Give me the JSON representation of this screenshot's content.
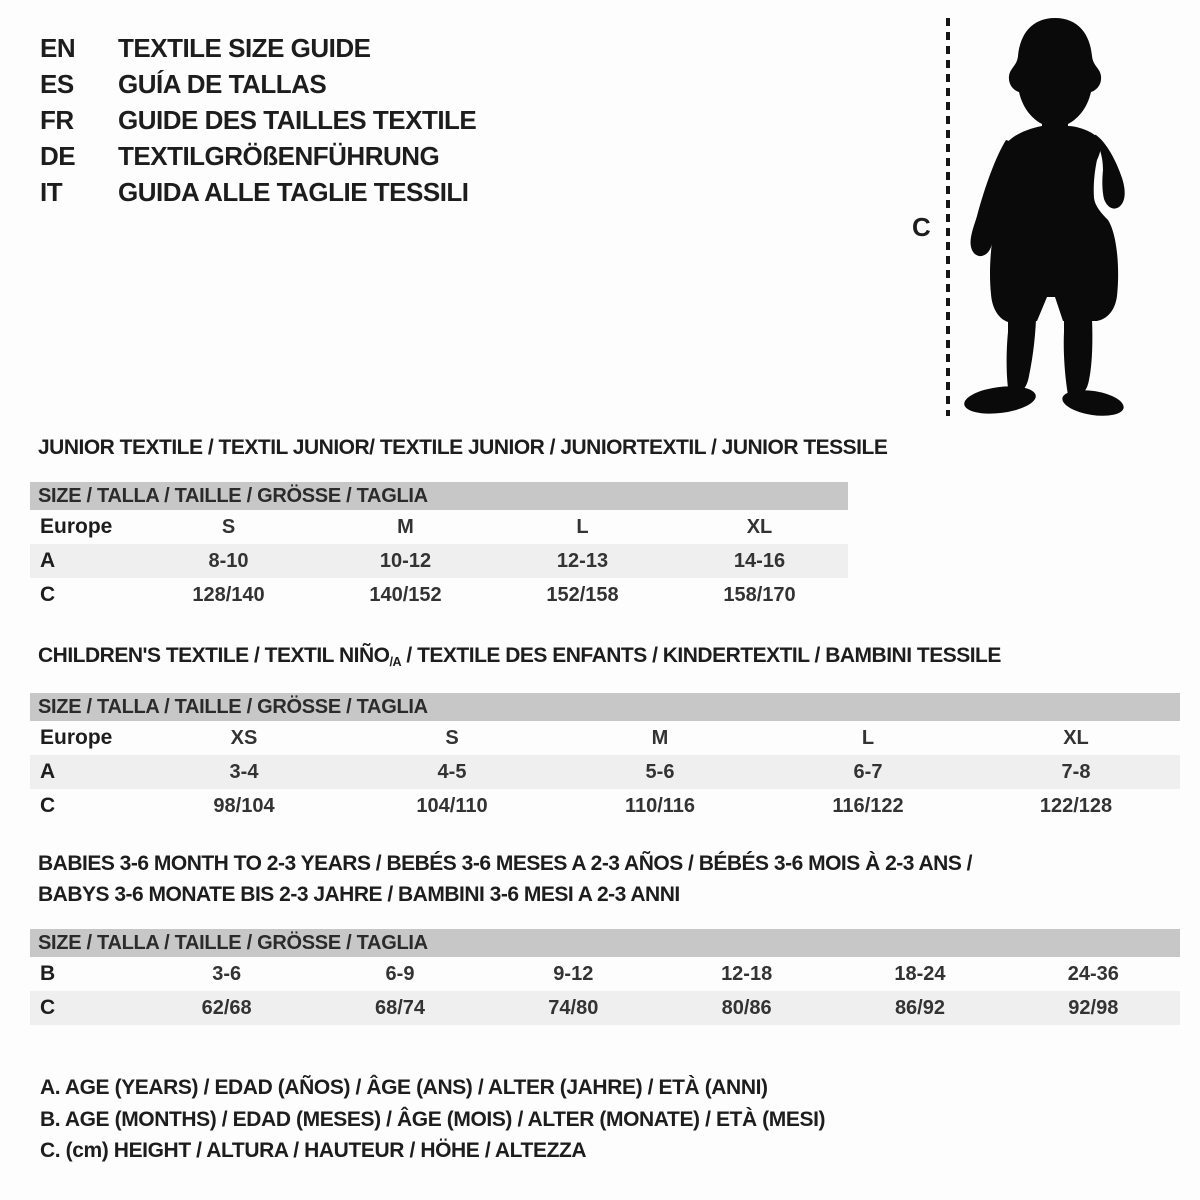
{
  "colors": {
    "background": "#fdfdfd",
    "ink": "#1d1d1d",
    "size_bar_bg": "#c7c7c7",
    "shaded_row_bg": "#efefef",
    "figure_fill": "#0a0a0a"
  },
  "languages": [
    {
      "code": "EN",
      "title": "TEXTILE SIZE GUIDE"
    },
    {
      "code": "ES",
      "title": "GUÍA DE TALLAS"
    },
    {
      "code": "FR",
      "title": "GUIDE DES TAILLES TEXTILE"
    },
    {
      "code": "DE",
      "title": "TEXTILGRÖßENFÜHRUNG"
    },
    {
      "code": "IT",
      "title": "GUIDA ALLE TAGLIE TESSILI"
    }
  ],
  "figure": {
    "measure_label": "C",
    "depicts": "toddler-silhouette"
  },
  "sections": [
    {
      "id": "junior",
      "heading_lines": [
        [
          {
            "text": "JUNIOR TEXTILE / TEXTIL JUNIOR/ TEXTILE JUNIOR / JUNIORTEXTIL / JUNIOR TESSILE"
          }
        ]
      ],
      "size_header": "SIZE / TALLA / TAILLE / GRÖSSE / TAGLIA",
      "rows": [
        {
          "label": "Europe",
          "cells": [
            "S",
            "M",
            "L",
            "XL"
          ],
          "shaded": false
        },
        {
          "label": "A",
          "cells": [
            "8-10",
            "10-12",
            "12-13",
            "14-16"
          ],
          "shaded": true
        },
        {
          "label": "C",
          "cells": [
            "128/140",
            "140/152",
            "152/158",
            "158/170"
          ],
          "shaded": false
        }
      ]
    },
    {
      "id": "children",
      "heading_lines": [
        [
          {
            "text": "CHILDREN'S TEXTILE / TEXTIL NIÑO"
          },
          {
            "text": "/A",
            "sub": true
          },
          {
            "text": " / TEXTILE DES ENFANTS / KINDERTEXTIL / BAMBINI TESSILE"
          }
        ]
      ],
      "size_header": "SIZE / TALLA / TAILLE / GRÖSSE / TAGLIA",
      "rows": [
        {
          "label": "Europe",
          "cells": [
            "XS",
            "S",
            "M",
            "L",
            "XL"
          ],
          "shaded": false
        },
        {
          "label": "A",
          "cells": [
            "3-4",
            "4-5",
            "5-6",
            "6-7",
            "7-8"
          ],
          "shaded": true
        },
        {
          "label": "C",
          "cells": [
            "98/104",
            "104/110",
            "110/116",
            "116/122",
            "122/128"
          ],
          "shaded": false
        }
      ]
    },
    {
      "id": "babies",
      "heading_lines": [
        [
          {
            "text": "BABIES 3-6 MONTH TO 2-3 YEARS / BEBÉS 3-6 MESES A 2-3 AÑOS / BÉBÉS 3-6 MOIS À 2-3 ANS /"
          }
        ],
        [
          {
            "text": "BABYS 3-6 MONATE BIS 2-3 JAHRE / BAMBINI 3-6 MESI A 2-3 ANNI"
          }
        ]
      ],
      "size_header": "SIZE / TALLA / TAILLE / GRÖSSE / TAGLIA",
      "rows": [
        {
          "label": "B",
          "cells": [
            "3-6",
            "6-9",
            "9-12",
            "12-18",
            "18-24",
            "24-36"
          ],
          "shaded": false
        },
        {
          "label": "C",
          "cells": [
            "62/68",
            "68/74",
            "74/80",
            "80/86",
            "86/92",
            "92/98"
          ],
          "shaded": true
        }
      ]
    }
  ],
  "legend": [
    "A. AGE (YEARS) / EDAD (AÑOS) / ÂGE (ANS) / ALTER (JAHRE) / ETÀ (ANNI)",
    "B. AGE (MONTHS) / EDAD (MESES) / ÂGE (MOIS) / ALTER (MONATE) / ETÀ (MESI)",
    "C. (cm) HEIGHT / ALTURA / HAUTEUR / HÖHE / ALTEZZA"
  ]
}
